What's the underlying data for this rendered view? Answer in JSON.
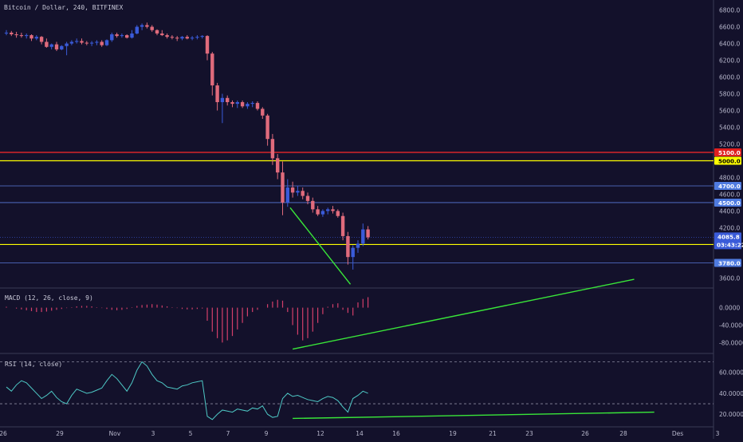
{
  "header": {
    "title": "Bitcoin / Dollar, 240, BITFINEX"
  },
  "colors": {
    "background": "#13112b",
    "up": "#3a5bd9",
    "down": "#e06b7c",
    "red_line": "#ff2a2a",
    "yellow_line": "#ffff00",
    "blue_line": "#5a78d8",
    "green_line": "#39e639",
    "macd_bar": "#d43f6a",
    "rsi_line": "#4ec9c6"
  },
  "chart_data": [
    {
      "type": "candlestick",
      "title": "Bitcoin / Dollar, 240, BITFINEX",
      "ylim": [
        3480,
        6920
      ],
      "y_ticks": [
        "6800.0",
        "6600.0",
        "6400.0",
        "6200.0",
        "6000.0",
        "5800.0",
        "5600.0",
        "5400.0",
        "5200.0",
        "4800.0",
        "4600.0",
        "4400.0",
        "4200.0",
        "3600.0"
      ],
      "x_ticks": [
        "26",
        "29",
        "Nov",
        "3",
        "5",
        "7",
        "9",
        "12",
        "14",
        "16",
        "19",
        "21",
        "23",
        "26",
        "28",
        "Des",
        "3"
      ],
      "horizontal_lines": [
        {
          "value": 5100,
          "label": "5100.0",
          "color": "red"
        },
        {
          "value": 5000,
          "label": "5000.0",
          "color": "yellow"
        },
        {
          "value": 4700,
          "label": "4700.0",
          "color": "blue"
        },
        {
          "value": 4500,
          "label": "4500.0",
          "color": "blue"
        },
        {
          "value": 4000,
          "label": "4000.0",
          "color": "yellow"
        },
        {
          "value": 3780,
          "label": "3780.0",
          "color": "blue"
        }
      ],
      "last_price": {
        "value": 4085.8,
        "label": "4085.8",
        "countdown": "03:43:22"
      },
      "trendline": {
        "start": [
          1,
          4440
        ],
        "end": [
          13,
          3525
        ]
      },
      "candles": [
        [
          6530,
          6560,
          6500,
          6530
        ],
        [
          6530,
          6550,
          6490,
          6510
        ],
        [
          6510,
          6540,
          6470,
          6500
        ],
        [
          6500,
          6530,
          6470,
          6490
        ],
        [
          6490,
          6520,
          6460,
          6500
        ],
        [
          6500,
          6510,
          6430,
          6460
        ],
        [
          6460,
          6500,
          6440,
          6480
        ],
        [
          6480,
          6490,
          6390,
          6420
        ],
        [
          6420,
          6460,
          6350,
          6360
        ],
        [
          6360,
          6400,
          6330,
          6390
        ],
        [
          6390,
          6420,
          6310,
          6330
        ],
        [
          6330,
          6380,
          6320,
          6370
        ],
        [
          6370,
          6420,
          6260,
          6400
        ],
        [
          6400,
          6440,
          6380,
          6420
        ],
        [
          6420,
          6460,
          6400,
          6430
        ],
        [
          6430,
          6460,
          6390,
          6410
        ],
        [
          6410,
          6430,
          6380,
          6400
        ],
        [
          6400,
          6430,
          6370,
          6410
        ],
        [
          6410,
          6440,
          6380,
          6420
        ],
        [
          6420,
          6440,
          6360,
          6380
        ],
        [
          6380,
          6450,
          6370,
          6440
        ],
        [
          6440,
          6530,
          6420,
          6510
        ],
        [
          6510,
          6530,
          6470,
          6490
        ],
        [
          6490,
          6520,
          6470,
          6500
        ],
        [
          6500,
          6510,
          6460,
          6470
        ],
        [
          6470,
          6560,
          6460,
          6520
        ],
        [
          6520,
          6620,
          6510,
          6600
        ],
        [
          6600,
          6640,
          6560,
          6620
        ],
        [
          6620,
          6650,
          6580,
          6600
        ],
        [
          6600,
          6620,
          6540,
          6560
        ],
        [
          6560,
          6570,
          6500,
          6520
        ],
        [
          6520,
          6560,
          6490,
          6500
        ],
        [
          6500,
          6520,
          6460,
          6480
        ],
        [
          6480,
          6500,
          6450,
          6470
        ],
        [
          6470,
          6490,
          6430,
          6460
        ],
        [
          6460,
          6490,
          6440,
          6480
        ],
        [
          6480,
          6500,
          6450,
          6460
        ],
        [
          6460,
          6490,
          6440,
          6470
        ],
        [
          6470,
          6500,
          6450,
          6480
        ],
        [
          6480,
          6500,
          6460,
          6490
        ],
        [
          6490,
          6500,
          6200,
          6280
        ],
        [
          6280,
          6300,
          5780,
          5900
        ],
        [
          5900,
          5930,
          5600,
          5700
        ],
        [
          5700,
          5800,
          5450,
          5750
        ],
        [
          5750,
          5780,
          5660,
          5700
        ],
        [
          5700,
          5720,
          5640,
          5680
        ],
        [
          5680,
          5720,
          5630,
          5700
        ],
        [
          5700,
          5720,
          5630,
          5650
        ],
        [
          5650,
          5700,
          5620,
          5680
        ],
        [
          5680,
          5710,
          5640,
          5690
        ],
        [
          5690,
          5710,
          5600,
          5620
        ],
        [
          5620,
          5640,
          5500,
          5540
        ],
        [
          5540,
          5560,
          5180,
          5260
        ],
        [
          5260,
          5320,
          4950,
          5030
        ],
        [
          5030,
          5080,
          4780,
          4860
        ],
        [
          4860,
          4990,
          4350,
          4500
        ],
        [
          4500,
          4780,
          4450,
          4680
        ],
        [
          4680,
          4750,
          4560,
          4620
        ],
        [
          4620,
          4700,
          4580,
          4640
        ],
        [
          4640,
          4680,
          4540,
          4580
        ],
        [
          4580,
          4620,
          4480,
          4520
        ],
        [
          4520,
          4560,
          4380,
          4420
        ],
        [
          4420,
          4460,
          4340,
          4360
        ],
        [
          4360,
          4420,
          4330,
          4400
        ],
        [
          4400,
          4440,
          4360,
          4420
        ],
        [
          4420,
          4460,
          4370,
          4400
        ],
        [
          4400,
          4420,
          4320,
          4340
        ],
        [
          4340,
          4380,
          4050,
          4100
        ],
        [
          4100,
          4150,
          3760,
          3850
        ],
        [
          3850,
          3990,
          3700,
          3960
        ],
        [
          3960,
          4050,
          3900,
          4010
        ],
        [
          4010,
          4250,
          3980,
          4180
        ],
        [
          4180,
          4220,
          4060,
          4085.8
        ]
      ]
    },
    {
      "type": "bar",
      "title": "MACD (12, 26, close, 9)",
      "ylim": [
        -105,
        45
      ],
      "y_ticks": [
        "0.0000",
        "-40.0000",
        "-80.0000"
      ],
      "trendline": {
        "start": [
          67,
          -95
        ],
        "end": [
          93,
          5
        ]
      },
      "values": [
        2,
        0,
        -2,
        -4,
        -6,
        -8,
        -10,
        -10,
        -9,
        -7,
        -5,
        -3,
        -1,
        1,
        3,
        4,
        4,
        3,
        1,
        -1,
        -3,
        -5,
        -6,
        -5,
        -3,
        1,
        4,
        6,
        7,
        8,
        7,
        5,
        3,
        1,
        -1,
        -3,
        -4,
        -4,
        -3,
        -2,
        -30,
        -55,
        -70,
        -80,
        -75,
        -65,
        -50,
        -35,
        -20,
        -10,
        -5,
        0,
        8,
        14,
        18,
        16,
        -10,
        -40,
        -62,
        -75,
        -70,
        -55,
        -35,
        -15,
        2,
        8,
        10,
        -5,
        -12,
        -18,
        12,
        20,
        24
      ]
    },
    {
      "type": "line",
      "title": "RSI (14, close)",
      "ylim": [
        8,
        78
      ],
      "y_ticks": [
        "60.0000",
        "40.0000",
        "20.0000"
      ],
      "dashed_levels": [
        70,
        30
      ],
      "trendline": {
        "start": [
          67,
          16
        ],
        "end": [
          93,
          22
        ]
      },
      "values": [
        46,
        42,
        48,
        52,
        50,
        45,
        40,
        35,
        38,
        42,
        36,
        32,
        30,
        38,
        44,
        42,
        40,
        41,
        43,
        45,
        52,
        58,
        54,
        48,
        42,
        50,
        62,
        70,
        66,
        58,
        52,
        50,
        46,
        45,
        44,
        47,
        48,
        50,
        51,
        52,
        18,
        15,
        20,
        24,
        23,
        22,
        25,
        24,
        23,
        26,
        25,
        28,
        20,
        17,
        18,
        35,
        40,
        37,
        38,
        36,
        34,
        33,
        32,
        35,
        37,
        36,
        33,
        27,
        22,
        35,
        38,
        42,
        40
      ]
    }
  ]
}
